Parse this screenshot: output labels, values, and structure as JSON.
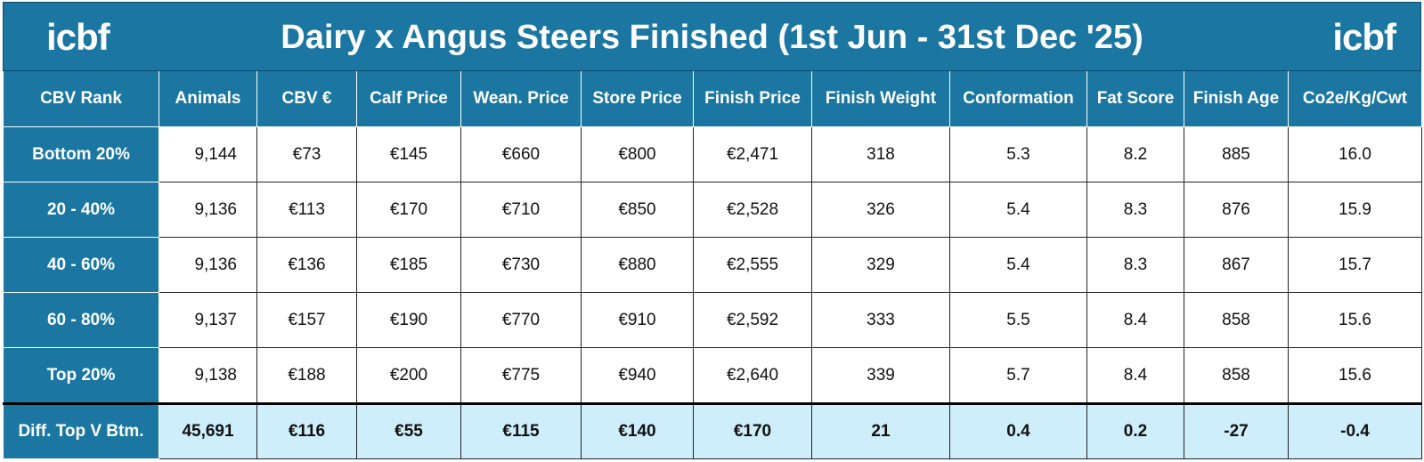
{
  "logo_left": "icbf",
  "title": "Dairy x Angus Steers Finished (1st Jun - 31st Dec '25)",
  "logo_right": "icbf",
  "table": {
    "columns": [
      "CBV Rank",
      "Animals",
      "CBV €",
      "Calf Price",
      "Wean. Price",
      "Store Price",
      "Finish Price",
      "Finish Weight",
      "Conformation",
      "Fat Score",
      "Finish Age",
      "Co2e/Kg/Cwt"
    ],
    "rows": [
      [
        "Bottom 20%",
        "9,144",
        "€73",
        "€145",
        "€660",
        "€800",
        "€2,471",
        "318",
        "5.3",
        "8.2",
        "885",
        "16.0"
      ],
      [
        "20 - 40%",
        "9,136",
        "€113",
        "€170",
        "€710",
        "€850",
        "€2,528",
        "326",
        "5.4",
        "8.3",
        "876",
        "15.9"
      ],
      [
        "40 - 60%",
        "9,136",
        "€136",
        "€185",
        "€730",
        "€880",
        "€2,555",
        "329",
        "5.4",
        "8.3",
        "867",
        "15.7"
      ],
      [
        "60 - 80%",
        "9,137",
        "€157",
        "€190",
        "€770",
        "€910",
        "€2,592",
        "333",
        "5.5",
        "8.4",
        "858",
        "15.6"
      ],
      [
        "Top 20%",
        "9,138",
        "€188",
        "€200",
        "€775",
        "€940",
        "€2,640",
        "339",
        "5.7",
        "8.4",
        "858",
        "15.6"
      ]
    ],
    "summary": [
      "Diff. Top V Btm.",
      "45,691",
      "€116",
      "€55",
      "€115",
      "€140",
      "€170",
      "21",
      "0.4",
      "0.2",
      "-27",
      "-0.4"
    ]
  }
}
